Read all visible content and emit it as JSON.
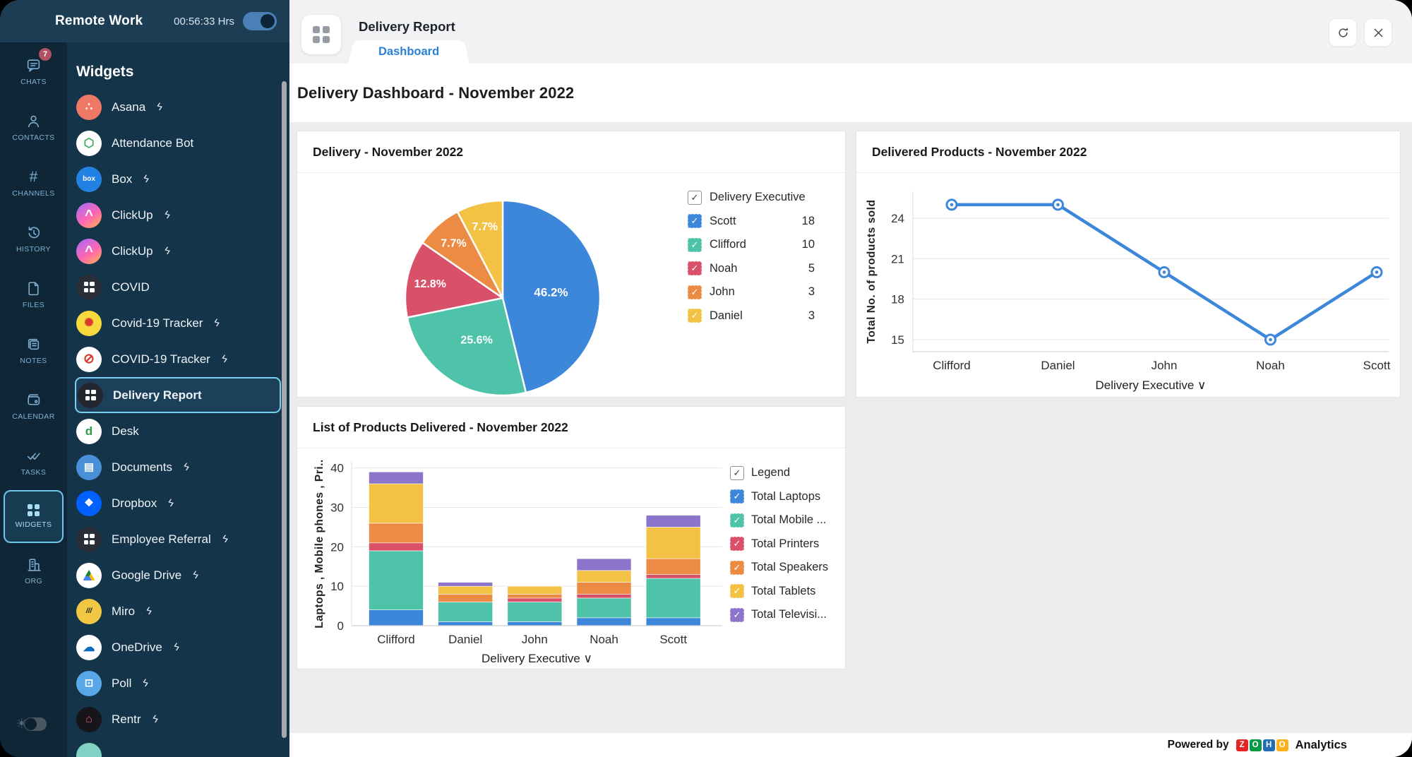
{
  "app": {
    "title": "Remote Work",
    "timer": "00:56:33 Hrs"
  },
  "ui": {
    "chevron_down": "∨",
    "check": "✓",
    "plug_glyph": "ϟ"
  },
  "rail": {
    "items": [
      {
        "label": "CHATS",
        "icon": "chat-bubble-icon",
        "badge": "7"
      },
      {
        "label": "CONTACTS",
        "icon": "person-icon"
      },
      {
        "label": "CHANNELS",
        "icon": "hash-icon",
        "glyph": "#"
      },
      {
        "label": "HISTORY",
        "icon": "history-clock-icon"
      },
      {
        "label": "FILES",
        "icon": "file-icon"
      },
      {
        "label": "NOTES",
        "icon": "notes-icon"
      },
      {
        "label": "CALENDAR",
        "icon": "calendar-icon"
      },
      {
        "label": "TASKS",
        "icon": "double-check-icon"
      },
      {
        "label": "WIDGETS",
        "icon": "grid-icon",
        "selected": true
      },
      {
        "label": "ORG",
        "icon": "building-icon"
      }
    ]
  },
  "sidebar": {
    "title": "Widgets",
    "items": [
      {
        "label": "Asana",
        "plug": true,
        "icon": {
          "name": "asana-logo",
          "bg": "#ee7866",
          "glyph": "∴",
          "size": 16
        }
      },
      {
        "label": "Attendance Bot",
        "plug": false,
        "icon": {
          "name": "attendance-bot-logo",
          "bg": "#ffffff",
          "glyph": "⬡",
          "color": "#3aa757",
          "size": 17
        }
      },
      {
        "label": "Box",
        "plug": true,
        "icon": {
          "name": "box-logo",
          "bg": "#2281e2",
          "glyph": "box",
          "size": 10
        }
      },
      {
        "label": "ClickUp",
        "plug": true,
        "icon": {
          "name": "clickup-logo",
          "bg": "linear-gradient(145deg,#9f6aff 0%,#ff66b3 55%,#ffb648 100%)",
          "glyph": "^",
          "size": 20
        }
      },
      {
        "label": "ClickUp",
        "plug": true,
        "icon": {
          "name": "clickup-logo",
          "bg": "linear-gradient(145deg,#9f6aff 0%,#ff66b3 55%,#ffb648 100%)",
          "glyph": "^",
          "size": 20
        }
      },
      {
        "label": "COVID",
        "plug": false,
        "icon": {
          "name": "widget-grid-icon",
          "bg": "#2a2e38",
          "grid": true
        }
      },
      {
        "label": "Covid-19 Tracker",
        "plug": true,
        "icon": {
          "name": "covid19-tracker-logo",
          "bg": "#f7d93e",
          "glyph": "✺",
          "color": "#d8372c",
          "size": 16
        }
      },
      {
        "label": "COVID-19 Tracker",
        "plug": true,
        "icon": {
          "name": "covid19-tracker-logo",
          "bg": "#ffffff",
          "glyph": "⊘",
          "color": "#d8372c",
          "size": 19
        }
      },
      {
        "label": "Delivery Report",
        "plug": false,
        "selected": true,
        "icon": {
          "name": "widget-grid-icon",
          "bg": "#23272f",
          "grid": true
        }
      },
      {
        "label": "Desk",
        "plug": false,
        "icon": {
          "name": "desk-logo",
          "bg": "#ffffff",
          "glyph": "d",
          "color": "#2f9e44",
          "size": 17
        }
      },
      {
        "label": "Documents",
        "plug": true,
        "icon": {
          "name": "documents-logo",
          "bg": "#4a90d9",
          "glyph": "▤",
          "size": 15
        }
      },
      {
        "label": "Dropbox",
        "plug": true,
        "icon": {
          "name": "dropbox-logo",
          "bg": "#0061ff",
          "glyph": "❖",
          "size": 15
        }
      },
      {
        "label": "Employee Referral",
        "plug": true,
        "icon": {
          "name": "widget-grid-icon",
          "bg": "#2a2e38",
          "grid": true
        }
      },
      {
        "label": "Google Drive",
        "plug": true,
        "icon": {
          "name": "google-drive-logo",
          "bg": "#ffffff",
          "tri": true
        }
      },
      {
        "label": "Miro",
        "plug": true,
        "icon": {
          "name": "miro-logo",
          "bg": "#f2c744",
          "glyph": "///",
          "color": "#111111",
          "size": 10,
          "italic": true
        }
      },
      {
        "label": "OneDrive",
        "plug": true,
        "icon": {
          "name": "onedrive-logo",
          "bg": "#ffffff",
          "glyph": "☁",
          "color": "#0d6cbd",
          "size": 17
        }
      },
      {
        "label": "Poll",
        "plug": true,
        "icon": {
          "name": "poll-bot-logo",
          "bg": "#58a7e8",
          "glyph": "⊡",
          "size": 15
        }
      },
      {
        "label": "Rentr",
        "plug": true,
        "icon": {
          "name": "rentr-logo",
          "bg": "#15151a",
          "glyph": "⌂",
          "color": "#e0606e",
          "size": 16
        }
      },
      {
        "label": "",
        "plug": false,
        "partial": true,
        "icon": {
          "name": "widget-logo",
          "bg": "#7fd2c4",
          "glyph": "",
          "size": 14
        }
      }
    ]
  },
  "main": {
    "header": {
      "title": "Delivery Report",
      "tab": "Dashboard"
    },
    "heading": "Delivery Dashboard - November 2022",
    "footer": {
      "powered_by": "Powered by",
      "zoho_tiles": [
        {
          "letter": "Z",
          "color": "#e42527"
        },
        {
          "letter": "O",
          "color": "#089949"
        },
        {
          "letter": "H",
          "color": "#226db4"
        },
        {
          "letter": "O",
          "color": "#f9b21d"
        }
      ],
      "brand_suffix": "Analytics"
    }
  },
  "chart_data": [
    {
      "type": "pie",
      "title": "Delivery - November 2022",
      "legend_title": "Delivery Executive",
      "legend_position": "right",
      "labels": [
        "Scott",
        "Clifford",
        "Noah",
        "John",
        "Daniel"
      ],
      "values": [
        18,
        10,
        5,
        3,
        3
      ],
      "percent_labels": [
        "46.2%",
        "25.6%",
        "12.8%",
        "7.7%",
        "7.7%"
      ],
      "colors": [
        "#3d87db",
        "#4fc3a9",
        "#d95069",
        "#ec8c44",
        "#f3c245"
      ]
    },
    {
      "type": "line",
      "title": "Delivered Products - November 2022",
      "categories": [
        "Clifford",
        "Daniel",
        "John",
        "Noah",
        "Scott"
      ],
      "values": [
        25,
        25,
        20,
        15,
        20
      ],
      "xlabel": "Delivery Executive",
      "ylabel": "Total No. of products sold",
      "yticks": [
        15,
        18,
        21,
        24
      ],
      "ylim": [
        14.2,
        26.1
      ],
      "color": "#3d87db",
      "grid": true
    },
    {
      "type": "stacked-bar",
      "title": "List of Products Delivered - November 2022",
      "categories": [
        "Clifford",
        "Daniel",
        "John",
        "Noah",
        "Scott"
      ],
      "series": [
        {
          "name": "Total Laptops",
          "color": "#3d87db",
          "values": [
            4,
            1,
            1,
            2,
            2
          ]
        },
        {
          "name": "Total Mobile ...",
          "color": "#4fc3a9",
          "values": [
            15,
            5,
            5,
            5,
            10
          ]
        },
        {
          "name": "Total Printers",
          "color": "#d95069",
          "values": [
            2,
            0,
            1,
            1,
            1
          ]
        },
        {
          "name": "Total Speakers",
          "color": "#ec8c44",
          "values": [
            5,
            2,
            1,
            3,
            4
          ]
        },
        {
          "name": "Total Tablets",
          "color": "#f3c245",
          "values": [
            10,
            2,
            2,
            3,
            8
          ]
        },
        {
          "name": "Total Televisi...",
          "color": "#8b74c9",
          "values": [
            3,
            1,
            0,
            3,
            3
          ]
        }
      ],
      "totals": [
        39,
        11,
        10,
        17,
        28
      ],
      "legend_title": "Legend",
      "legend_position": "right",
      "xlabel": "Delivery Executive",
      "ylabel": "Laptops , Mobile phones , Pri..",
      "yticks": [
        0,
        10,
        20,
        30,
        40
      ],
      "ylim": [
        0,
        43
      ],
      "grid": true
    }
  ]
}
